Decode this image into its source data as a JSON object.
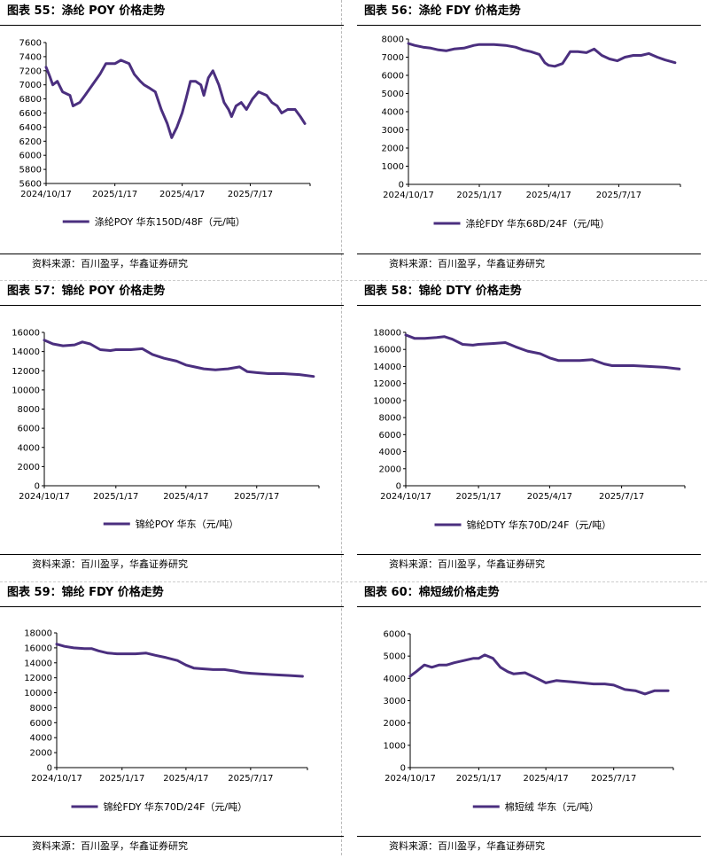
{
  "source_text": "资料来源：百川盈孚，华鑫证券研究",
  "line_color": "#4b2f7f",
  "panels": [
    {
      "title": "图表 55：涤纶 POY 价格走势"
    },
    {
      "title": "图表 56：涤纶 FDY 价格走势"
    },
    {
      "title": "图表 57：锦纶 POY 价格走势"
    },
    {
      "title": "图表 58：锦纶 DTY 价格走势"
    },
    {
      "title": "图表 59：锦纶 FDY 价格走势"
    },
    {
      "title": "图表 60：棉短绒价格走势"
    }
  ],
  "chart_data": [
    {
      "type": "line",
      "x_ticks": [
        "2024/10/17",
        "2025/1/17",
        "2025/4/17",
        "2025/7/17"
      ],
      "ylim": [
        5600,
        7600
      ],
      "y_ticks": [
        5600,
        5800,
        6000,
        6200,
        6400,
        6600,
        6800,
        7000,
        7200,
        7400,
        7600
      ],
      "legend": "top-none,bottom-center",
      "series": [
        {
          "name": "涤纶POY 华东150D/48F（元/吨）",
          "x": [
            "2024-10-17",
            "2024-10-22",
            "2024-10-26",
            "2024-11-01",
            "2024-11-08",
            "2024-11-18",
            "2024-11-22",
            "2024-12-01",
            "2024-12-08",
            "2024-12-18",
            "2024-12-28",
            "2025-01-05",
            "2025-01-17",
            "2025-01-25",
            "2025-02-05",
            "2025-02-12",
            "2025-02-20",
            "2025-02-25",
            "2025-03-05",
            "2025-03-12",
            "2025-03-20",
            "2025-03-28",
            "2025-04-03",
            "2025-04-10",
            "2025-04-17",
            "2025-04-22",
            "2025-04-28",
            "2025-05-05",
            "2025-05-12",
            "2025-05-16",
            "2025-05-22",
            "2025-05-28",
            "2025-06-05",
            "2025-06-12",
            "2025-06-18",
            "2025-06-22",
            "2025-06-28",
            "2025-07-05",
            "2025-07-12",
            "2025-07-20",
            "2025-07-28",
            "2025-08-08",
            "2025-08-15",
            "2025-08-22",
            "2025-08-28",
            "2025-09-05",
            "2025-09-15",
            "2025-09-22",
            "2025-09-28"
          ],
          "values": [
            7250,
            7120,
            7000,
            7050,
            6900,
            6850,
            6700,
            6750,
            6850,
            7000,
            7150,
            7300,
            7300,
            7350,
            7300,
            7150,
            7050,
            7000,
            6950,
            6900,
            6650,
            6450,
            6250,
            6400,
            6600,
            6800,
            7050,
            7050,
            7000,
            6850,
            7100,
            7200,
            7000,
            6750,
            6650,
            6550,
            6700,
            6750,
            6650,
            6800,
            6900,
            6850,
            6750,
            6700,
            6600,
            6650,
            6650,
            6550,
            6450
          ]
        }
      ]
    },
    {
      "type": "line",
      "x_ticks": [
        "2024/10/17",
        "2025/1/17",
        "2025/4/17",
        "2025/7/17"
      ],
      "ylim": [
        0,
        8000
      ],
      "y_ticks": [
        0,
        1000,
        2000,
        3000,
        4000,
        5000,
        6000,
        7000,
        8000
      ],
      "series": [
        {
          "name": "涤纶FDY 华东68D/24F（元/吨）",
          "x": [
            "2024-10-17",
            "2024-10-25",
            "2024-11-05",
            "2024-11-15",
            "2024-11-25",
            "2024-12-05",
            "2024-12-15",
            "2024-12-28",
            "2025-01-10",
            "2025-01-17",
            "2025-02-05",
            "2025-02-20",
            "2025-03-05",
            "2025-03-15",
            "2025-03-25",
            "2025-04-05",
            "2025-04-12",
            "2025-04-17",
            "2025-04-25",
            "2025-05-05",
            "2025-05-15",
            "2025-05-25",
            "2025-06-05",
            "2025-06-15",
            "2025-06-25",
            "2025-07-05",
            "2025-07-15",
            "2025-07-25",
            "2025-08-05",
            "2025-08-15",
            "2025-08-25",
            "2025-09-05",
            "2025-09-15",
            "2025-09-28"
          ],
          "values": [
            7750,
            7650,
            7550,
            7500,
            7400,
            7350,
            7450,
            7500,
            7650,
            7700,
            7700,
            7650,
            7550,
            7400,
            7300,
            7150,
            6700,
            6550,
            6500,
            6650,
            7300,
            7300,
            7250,
            7450,
            7100,
            6900,
            6800,
            7000,
            7100,
            7100,
            7200,
            7000,
            6850,
            6700
          ]
        }
      ]
    },
    {
      "type": "line",
      "x_ticks": [
        "2024/10/17",
        "2025/1/17",
        "2025/4/17",
        "2025/7/17"
      ],
      "ylim": [
        0,
        16000
      ],
      "y_ticks": [
        0,
        2000,
        4000,
        6000,
        8000,
        10000,
        12000,
        14000,
        16000
      ],
      "series": [
        {
          "name": "锦纶POY 华东（元/吨）",
          "x": [
            "2024-10-17",
            "2024-10-28",
            "2024-11-10",
            "2024-11-25",
            "2024-12-05",
            "2024-12-15",
            "2024-12-28",
            "2025-01-10",
            "2025-01-17",
            "2025-02-05",
            "2025-02-20",
            "2025-03-05",
            "2025-03-20",
            "2025-04-05",
            "2025-04-17",
            "2025-04-28",
            "2025-05-10",
            "2025-05-25",
            "2025-06-10",
            "2025-06-25",
            "2025-07-05",
            "2025-07-17",
            "2025-08-01",
            "2025-08-20",
            "2025-09-10",
            "2025-09-28"
          ],
          "values": [
            15200,
            14800,
            14600,
            14700,
            15000,
            14800,
            14200,
            14100,
            14200,
            14200,
            14300,
            13700,
            13300,
            13000,
            12600,
            12400,
            12200,
            12100,
            12200,
            12400,
            11900,
            11800,
            11700,
            11700,
            11600,
            11400
          ]
        }
      ]
    },
    {
      "type": "line",
      "x_ticks": [
        "2024/10/17",
        "2025/1/17",
        "2025/4/17",
        "2025/7/17"
      ],
      "ylim": [
        0,
        18000
      ],
      "y_ticks": [
        0,
        2000,
        4000,
        6000,
        8000,
        10000,
        12000,
        14000,
        16000,
        18000
      ],
      "series": [
        {
          "name": "锦纶DTY 华东70D/24F（元/吨）",
          "x": [
            "2024-10-17",
            "2024-10-28",
            "2024-11-10",
            "2024-11-25",
            "2024-12-05",
            "2024-12-15",
            "2024-12-28",
            "2025-01-10",
            "2025-01-17",
            "2025-02-05",
            "2025-02-20",
            "2025-03-05",
            "2025-03-20",
            "2025-04-05",
            "2025-04-17",
            "2025-04-28",
            "2025-05-10",
            "2025-05-25",
            "2025-06-10",
            "2025-06-25",
            "2025-07-05",
            "2025-07-17",
            "2025-08-01",
            "2025-08-20",
            "2025-09-10",
            "2025-09-28"
          ],
          "values": [
            17700,
            17300,
            17300,
            17400,
            17500,
            17200,
            16600,
            16500,
            16600,
            16700,
            16800,
            16300,
            15800,
            15500,
            15000,
            14700,
            14700,
            14700,
            14800,
            14300,
            14100,
            14100,
            14100,
            14000,
            13900,
            13700
          ]
        }
      ]
    },
    {
      "type": "line",
      "x_ticks": [
        "2024/10/17",
        "2025/1/17",
        "2025/4/17",
        "2025/7/17"
      ],
      "ylim": [
        0,
        18000
      ],
      "y_ticks": [
        0,
        2000,
        4000,
        6000,
        8000,
        10000,
        12000,
        14000,
        16000,
        18000
      ],
      "series": [
        {
          "name": "锦纶FDY 华东70D/24F（元/吨）",
          "x": [
            "2024-10-17",
            "2024-10-28",
            "2024-11-10",
            "2024-11-25",
            "2024-12-05",
            "2024-12-15",
            "2024-12-28",
            "2025-01-10",
            "2025-01-17",
            "2025-02-05",
            "2025-02-20",
            "2025-03-05",
            "2025-03-20",
            "2025-04-05",
            "2025-04-17",
            "2025-04-28",
            "2025-05-10",
            "2025-05-25",
            "2025-06-10",
            "2025-06-25",
            "2025-07-05",
            "2025-07-17",
            "2025-08-01",
            "2025-08-20",
            "2025-09-10",
            "2025-09-28"
          ],
          "values": [
            16500,
            16200,
            16000,
            15900,
            15900,
            15600,
            15300,
            15200,
            15200,
            15200,
            15300,
            15000,
            14700,
            14300,
            13700,
            13300,
            13200,
            13100,
            13100,
            12900,
            12700,
            12600,
            12500,
            12400,
            12300,
            12200
          ]
        }
      ]
    },
    {
      "type": "line",
      "x_ticks": [
        "2024/10/17",
        "2025/1/17",
        "2025/4/17",
        "2025/7/17"
      ],
      "ylim": [
        0,
        6000
      ],
      "y_ticks": [
        0,
        1000,
        2000,
        3000,
        4000,
        5000,
        6000
      ],
      "series": [
        {
          "name": "棉短绒 华东（元/吨）",
          "x": [
            "2024-10-17",
            "2024-10-25",
            "2024-11-05",
            "2024-11-15",
            "2024-11-25",
            "2024-12-05",
            "2024-12-15",
            "2024-12-28",
            "2025-01-10",
            "2025-01-17",
            "2025-01-25",
            "2025-02-05",
            "2025-02-15",
            "2025-02-25",
            "2025-03-05",
            "2025-03-20",
            "2025-04-05",
            "2025-04-17",
            "2025-05-01",
            "2025-05-20",
            "2025-06-05",
            "2025-06-20",
            "2025-07-05",
            "2025-07-17",
            "2025-08-01",
            "2025-08-15",
            "2025-08-28",
            "2025-09-10",
            "2025-09-28"
          ],
          "values": [
            4100,
            4300,
            4600,
            4500,
            4600,
            4600,
            4700,
            4800,
            4900,
            4900,
            5050,
            4900,
            4500,
            4300,
            4200,
            4250,
            4000,
            3800,
            3900,
            3850,
            3800,
            3750,
            3750,
            3700,
            3500,
            3450,
            3300,
            3450,
            3450
          ]
        }
      ]
    }
  ]
}
